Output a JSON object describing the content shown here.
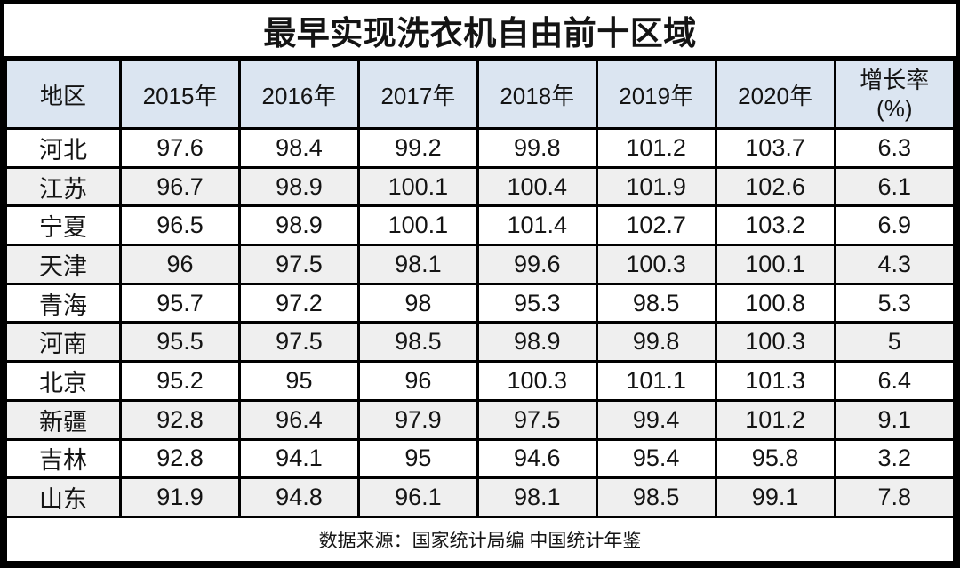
{
  "chart_data": {
    "type": "table",
    "title": "最早实现洗衣机自由前十区域",
    "region_header": "地区",
    "year_headers": [
      "2015年",
      "2016年",
      "2017年",
      "2018年",
      "2019年",
      "2020年"
    ],
    "growth_header": {
      "line1": "增长率",
      "line2": "(%)"
    },
    "rows": [
      {
        "region": "河北",
        "values": [
          97.6,
          98.4,
          99.2,
          99.8,
          101.2,
          103.7
        ],
        "growth": 6.3
      },
      {
        "region": "江苏",
        "values": [
          96.7,
          98.9,
          100.1,
          100.4,
          101.9,
          102.6
        ],
        "growth": 6.1
      },
      {
        "region": "宁夏",
        "values": [
          96.5,
          98.9,
          100.1,
          101.4,
          102.7,
          103.2
        ],
        "growth": 6.9
      },
      {
        "region": "天津",
        "values": [
          96,
          97.5,
          98.1,
          99.6,
          100.3,
          100.1
        ],
        "growth": 4.3
      },
      {
        "region": "青海",
        "values": [
          95.7,
          97.2,
          98,
          95.3,
          98.5,
          100.8
        ],
        "growth": 5.3
      },
      {
        "region": "河南",
        "values": [
          95.5,
          97.5,
          98.5,
          98.9,
          99.8,
          100.3
        ],
        "growth": 5
      },
      {
        "region": "北京",
        "values": [
          95.2,
          95,
          96,
          100.3,
          101.1,
          101.3
        ],
        "growth": 6.4
      },
      {
        "region": "新疆",
        "values": [
          92.8,
          96.4,
          97.9,
          97.5,
          99.4,
          101.2
        ],
        "growth": 9.1
      },
      {
        "region": "吉林",
        "values": [
          92.8,
          94.1,
          95,
          94.6,
          95.4,
          95.8
        ],
        "growth": 3.2
      },
      {
        "region": "山东",
        "values": [
          91.9,
          94.8,
          96.1,
          98.1,
          98.5,
          99.1
        ],
        "growth": 7.8
      }
    ],
    "source_note": "数据来源：国家统计局编 中国统计年鉴",
    "layout": {
      "legend": "none",
      "grid": "full-borders",
      "alt_row_shading": true
    }
  },
  "colors": {
    "header_bg": "#dbe5f1",
    "alt_row_bg": "#efefef",
    "border": "#000000",
    "text": "#141414"
  }
}
